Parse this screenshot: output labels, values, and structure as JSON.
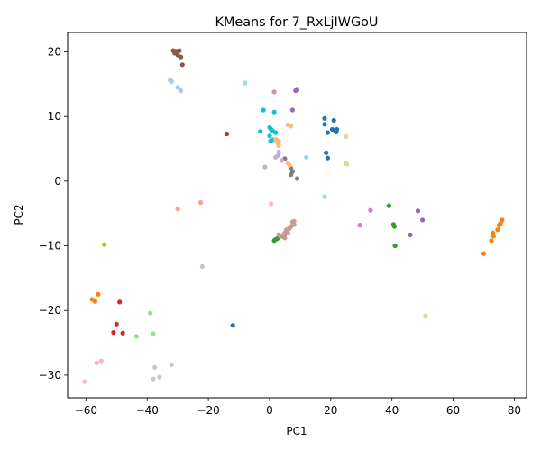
{
  "chart_data": {
    "type": "scatter",
    "title": "KMeans for 7_RxLjIWGoU",
    "xlabel": "PC1",
    "ylabel": "PC2",
    "xlim": [
      -66,
      84
    ],
    "ylim": [
      -33.5,
      23
    ],
    "xticks": [
      -60,
      -40,
      -20,
      0,
      20,
      40,
      60,
      80
    ],
    "yticks": [
      -30,
      -20,
      -10,
      0,
      10,
      20
    ],
    "grid": false,
    "legend": "none",
    "series": [
      {
        "color": "#1f77b4",
        "points": [
          [
            18,
            9.7
          ],
          [
            18,
            8.8
          ],
          [
            21,
            9.4
          ],
          [
            20.5,
            8
          ],
          [
            21.5,
            7.8
          ],
          [
            22,
            8
          ],
          [
            21.8,
            7.6
          ],
          [
            19,
            7.5
          ],
          [
            18.5,
            4.4
          ],
          [
            19,
            3.6
          ],
          [
            -12,
            -22.3
          ]
        ]
      },
      {
        "color": "#ff7f0e",
        "points": [
          [
            76,
            -6
          ],
          [
            75.5,
            -6.5
          ],
          [
            75,
            -6.8
          ],
          [
            74.5,
            -7.5
          ],
          [
            73,
            -8
          ],
          [
            73.2,
            -8.5
          ],
          [
            72.5,
            -9.2
          ],
          [
            70,
            -11.2
          ],
          [
            -58,
            -18.3
          ],
          [
            -57,
            -18.6
          ],
          [
            -56,
            -17.5
          ]
        ]
      },
      {
        "color": "#2ca02c",
        "points": [
          [
            1.5,
            -9.2
          ],
          [
            2,
            -9
          ],
          [
            2.5,
            -8.9
          ],
          [
            3,
            -8.7
          ],
          [
            4,
            -8.5
          ],
          [
            5,
            -8.2
          ],
          [
            39,
            -3.8
          ],
          [
            40.5,
            -6.7
          ],
          [
            40.8,
            -7
          ],
          [
            41,
            -10
          ]
        ]
      },
      {
        "color": "#d62728",
        "points": [
          [
            -14,
            7.3
          ],
          [
            -49,
            -18.7
          ],
          [
            -50,
            -22.1
          ],
          [
            -51,
            -23.4
          ],
          [
            -48,
            -23.5
          ]
        ]
      },
      {
        "color": "#9467bd",
        "points": [
          [
            8.5,
            14
          ],
          [
            9,
            14.1
          ],
          [
            7.5,
            11
          ],
          [
            48.5,
            -4.6
          ],
          [
            50,
            -6
          ],
          [
            46,
            -8.3
          ]
        ]
      },
      {
        "color": "#8c564b",
        "points": [
          [
            -31.5,
            20.2
          ],
          [
            -30.5,
            20.1
          ],
          [
            -29.5,
            20.2
          ],
          [
            -31,
            19.8
          ],
          [
            -30,
            19.5
          ],
          [
            -29,
            19.2
          ],
          [
            -28.5,
            18
          ]
        ]
      },
      {
        "color": "#e377c2",
        "points": [
          [
            33,
            -4.5
          ],
          [
            29.5,
            -6.8
          ]
        ]
      },
      {
        "color": "#7f7f7f",
        "points": [
          [
            5,
            3.5
          ],
          [
            7,
            2
          ],
          [
            7.5,
            1.5
          ],
          [
            7,
            1
          ],
          [
            9,
            0.4
          ]
        ]
      },
      {
        "color": "#bcbd22",
        "points": [
          [
            -54,
            -9.8
          ]
        ]
      },
      {
        "color": "#17becf",
        "points": [
          [
            -2,
            11
          ],
          [
            1.5,
            10.7
          ],
          [
            0,
            8.3
          ],
          [
            0.5,
            8
          ],
          [
            1,
            7.8
          ],
          [
            2,
            7.5
          ],
          [
            -3,
            7.7
          ],
          [
            0,
            7
          ],
          [
            0.3,
            6.2
          ],
          [
            1,
            6.4
          ]
        ]
      },
      {
        "color": "#aec7e8",
        "points": [
          [
            -32.5,
            15.6
          ],
          [
            -32,
            15.4
          ],
          [
            -30,
            14.5
          ],
          [
            -29,
            14
          ]
        ]
      },
      {
        "color": "#ffbb78",
        "points": [
          [
            6,
            8.7
          ],
          [
            7,
            8.5
          ],
          [
            2,
            6.5
          ],
          [
            3,
            6.2
          ],
          [
            2.5,
            6
          ],
          [
            3,
            5.5
          ],
          [
            6,
            2.8
          ],
          [
            6.5,
            2.5
          ]
        ]
      },
      {
        "color": "#98df8a",
        "points": [
          [
            -39,
            -20.4
          ],
          [
            -38,
            -23.6
          ],
          [
            -43.5,
            -24
          ]
        ]
      },
      {
        "color": "#ff9896",
        "points": [
          [
            -22.5,
            -3.3
          ],
          [
            -30,
            -4.3
          ]
        ]
      },
      {
        "color": "#c5b0d5",
        "points": [
          [
            -1.5,
            2.2
          ],
          [
            2,
            3.7
          ],
          [
            3,
            4.5
          ],
          [
            4,
            3.2
          ],
          [
            2.8,
            4
          ]
        ]
      },
      {
        "color": "#c49c94",
        "points": [
          [
            1.5,
            13.8
          ],
          [
            7.5,
            -6.3
          ],
          [
            8,
            -6.2
          ],
          [
            8,
            -6.7
          ],
          [
            7,
            -7
          ],
          [
            6.5,
            -7.3
          ],
          [
            6,
            -7.5
          ],
          [
            5.5,
            -7.5
          ],
          [
            5,
            -8
          ],
          [
            6,
            -8
          ],
          [
            4.5,
            -8.3
          ],
          [
            3.5,
            -8.5
          ],
          [
            3,
            -8.3
          ],
          [
            5,
            -8.8
          ]
        ]
      },
      {
        "color": "#f7b6d2",
        "points": [
          [
            0.5,
            -3.5
          ],
          [
            -56.5,
            -28.1
          ],
          [
            -55,
            -27.8
          ],
          [
            -60.5,
            -31
          ]
        ]
      },
      {
        "color": "#c7c7c7",
        "points": [
          [
            -22,
            -13.2
          ],
          [
            -37.5,
            -28.8
          ],
          [
            -32,
            -28.4
          ],
          [
            -36,
            -30.3
          ],
          [
            -38,
            -30.6
          ]
        ]
      },
      {
        "color": "#dbdb8d",
        "points": [
          [
            25,
            6.9
          ],
          [
            25,
            2.8
          ],
          [
            25.2,
            2.6
          ],
          [
            51,
            -20.8
          ]
        ]
      },
      {
        "color": "#9edae5",
        "points": [
          [
            -8,
            15.2
          ],
          [
            12,
            3.7
          ],
          [
            18,
            -2.4
          ]
        ]
      }
    ]
  }
}
